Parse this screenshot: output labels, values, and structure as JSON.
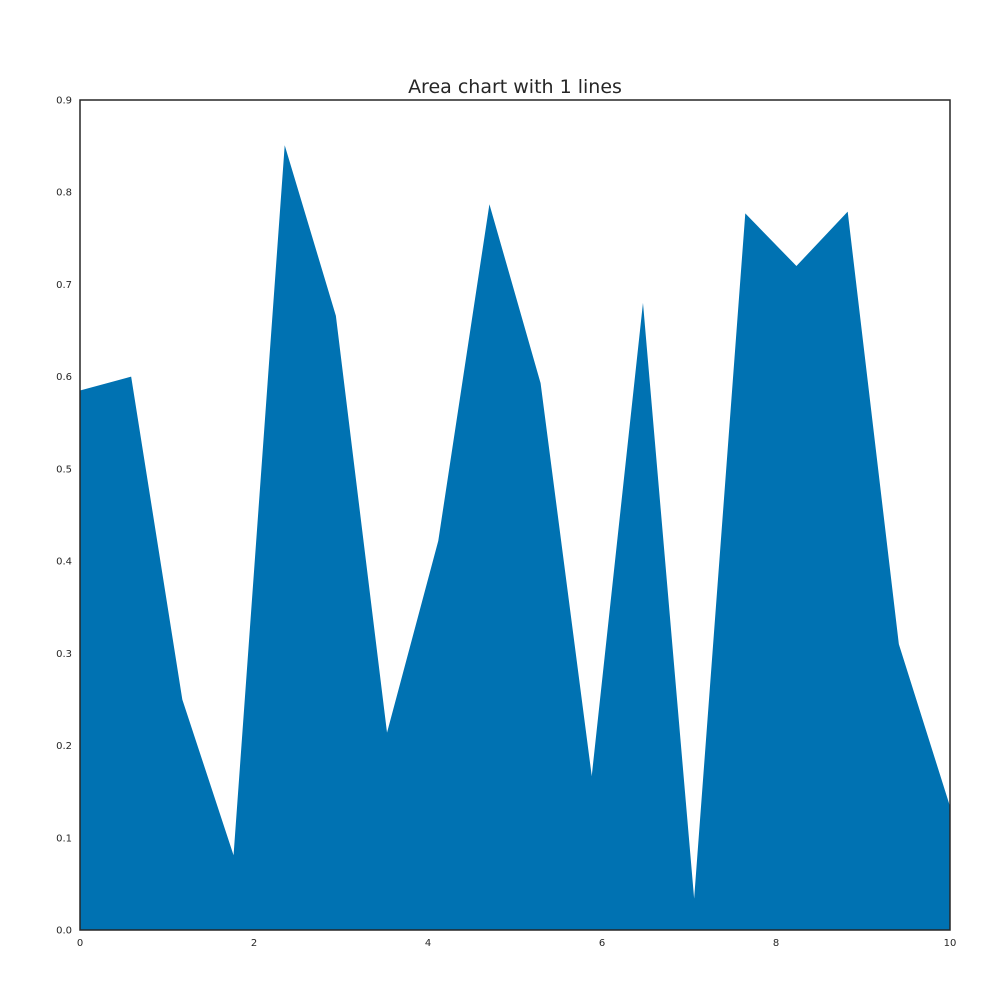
{
  "chart_data": {
    "type": "area",
    "title": "Area chart with 1 lines",
    "xlabel": "",
    "ylabel": "",
    "xlim": [
      0,
      10
    ],
    "ylim": [
      0,
      0.9
    ],
    "x_ticks": [
      "0",
      "2",
      "4",
      "6",
      "8",
      "10"
    ],
    "y_ticks": [
      "0.0",
      "0.1",
      "0.2",
      "0.3",
      "0.4",
      "0.5",
      "0.6",
      "0.7",
      "0.8",
      "0.9"
    ],
    "grid": false,
    "series": [
      {
        "color": "#0072b2",
        "x": [
          0,
          0.588,
          1.176,
          1.765,
          2.353,
          2.941,
          3.529,
          4.118,
          4.706,
          5.294,
          5.882,
          6.471,
          7.059,
          7.647,
          8.235,
          8.824,
          9.412,
          10
        ],
        "values": [
          0.585,
          0.6,
          0.25,
          0.081,
          0.851,
          0.666,
          0.214,
          0.422,
          0.787,
          0.593,
          0.167,
          0.68,
          0.034,
          0.777,
          0.72,
          0.779,
          0.31,
          0.134
        ]
      }
    ]
  }
}
